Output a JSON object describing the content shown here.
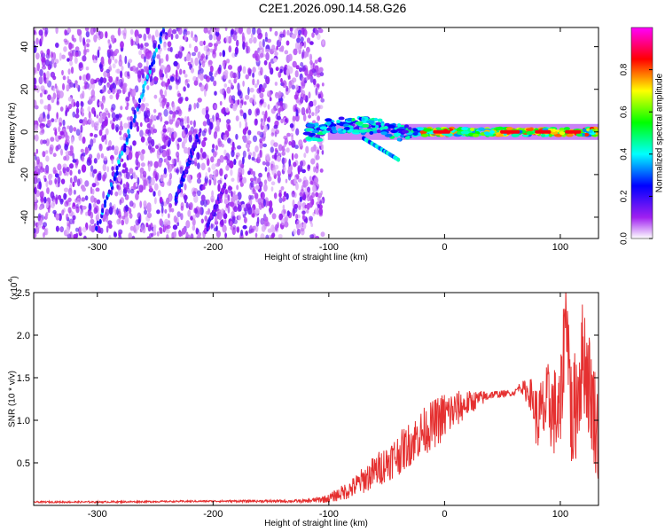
{
  "title": "C2E1.2026.090.14.58.G26",
  "chart_data": [
    {
      "type": "heatmap",
      "xlabel": "Height of straight line (km)",
      "ylabel": "Frequency (Hz)",
      "xlim": [
        -355,
        133
      ],
      "ylim": [
        -50,
        49
      ],
      "xticks": [
        -300,
        -200,
        -100,
        0,
        100
      ],
      "yticks": [
        -40,
        -20,
        0,
        20,
        40
      ],
      "colorbar": {
        "label": "Normalized spectral amplitude",
        "range": [
          0,
          1
        ],
        "ticks": [
          0.0,
          0.2,
          0.4,
          0.6,
          0.8
        ],
        "tick_labels": [
          "0.0",
          "0.2",
          "0.4",
          "0.6",
          "0.8"
        ],
        "colors": [
          "#ffffff",
          "#a020f0",
          "#0000ff",
          "#00ffff",
          "#00ff00",
          "#ffff00",
          "#ff0000",
          "#ff00ff"
        ]
      },
      "features": [
        {
          "name": "noise field",
          "x_range": [
            -355,
            -120
          ],
          "y_range": [
            -50,
            49
          ],
          "amplitude": 0.15
        },
        {
          "name": "diagonal streak",
          "from": [
            -300,
            -45
          ],
          "to": [
            -242,
            49
          ],
          "amplitude": 0.3
        },
        {
          "name": "diagonal streak",
          "from": [
            -233,
            -33
          ],
          "to": [
            -212,
            0
          ],
          "amplitude": 0.2
        },
        {
          "name": "diagonal streak",
          "from": [
            -205,
            -45
          ],
          "to": [
            -190,
            -25
          ],
          "amplitude": 0.15
        },
        {
          "name": "meteor echo band",
          "x_range": [
            -120,
            133
          ],
          "center_freq": 0,
          "amplitude": 0.9
        }
      ]
    },
    {
      "type": "line",
      "xlabel": "Height of straight line (km)",
      "ylabel": "SNR (10 * v/v)",
      "scale_label": "(x10",
      "scale_exponent": "4",
      "scale_close": ")",
      "xlim": [
        -355,
        133
      ],
      "ylim": [
        0,
        2.5
      ],
      "xticks": [
        -300,
        -200,
        -100,
        0,
        100
      ],
      "yticks": [
        0.5,
        1.0,
        1.5,
        2.0,
        2.5
      ],
      "ytick_labels": [
        "0.5",
        "1.0",
        "1.5",
        "2.0",
        "2.5"
      ],
      "color": "#e53030",
      "series": [
        {
          "name": "SNR",
          "x": [
            -355,
            -300,
            -200,
            -120,
            -100,
            -80,
            -60,
            -40,
            -20,
            0,
            20,
            40,
            60,
            65,
            75,
            80,
            90,
            100,
            105,
            110,
            120,
            133
          ],
          "values": [
            0.04,
            0.04,
            0.05,
            0.05,
            0.08,
            0.2,
            0.4,
            0.6,
            0.85,
            1.05,
            1.2,
            1.3,
            1.32,
            1.4,
            1.3,
            1.0,
            1.2,
            1.0,
            2.5,
            0.9,
            1.8,
            0.8
          ],
          "variability": [
            0.01,
            0.01,
            0.01,
            0.02,
            0.05,
            0.12,
            0.2,
            0.25,
            0.28,
            0.3,
            0.15,
            0.05,
            0.03,
            0.05,
            0.2,
            0.4,
            0.5,
            0.6,
            0.6,
            0.7,
            0.7,
            0.6
          ]
        }
      ]
    }
  ]
}
